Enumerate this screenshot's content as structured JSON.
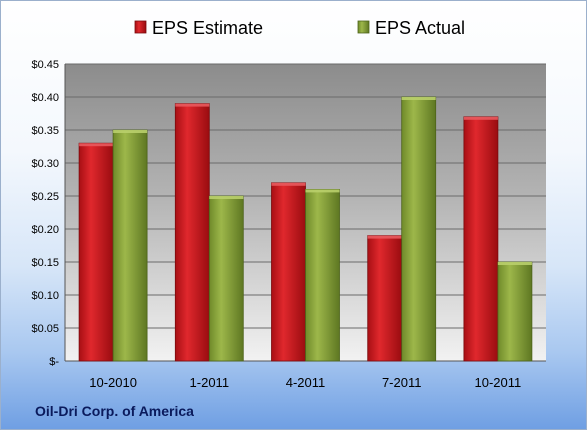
{
  "company": "Oil-Dri Corp. of America",
  "colors": {
    "estimate": "#c8181e",
    "actual": "#8ba43a"
  },
  "chart_data": {
    "type": "bar",
    "categories": [
      "10-2010",
      "1-2011",
      "4-2011",
      "7-2011",
      "10-2011"
    ],
    "series": [
      {
        "name": "EPS Estimate",
        "values": [
          0.33,
          0.39,
          0.27,
          0.19,
          0.37
        ]
      },
      {
        "name": "EPS Actual",
        "values": [
          0.35,
          0.25,
          0.26,
          0.4,
          0.15
        ]
      }
    ],
    "ylim": [
      0,
      0.45
    ],
    "yticks": [
      0,
      0.05,
      0.1,
      0.15,
      0.2,
      0.25,
      0.3,
      0.35,
      0.4,
      0.45
    ],
    "ytick_labels": [
      "$-",
      "$0.05",
      "$0.10",
      "$0.15",
      "$0.20",
      "$0.25",
      "$0.30",
      "$0.35",
      "$0.40",
      "$0.45"
    ],
    "legend_position": "top",
    "grid": true
  }
}
